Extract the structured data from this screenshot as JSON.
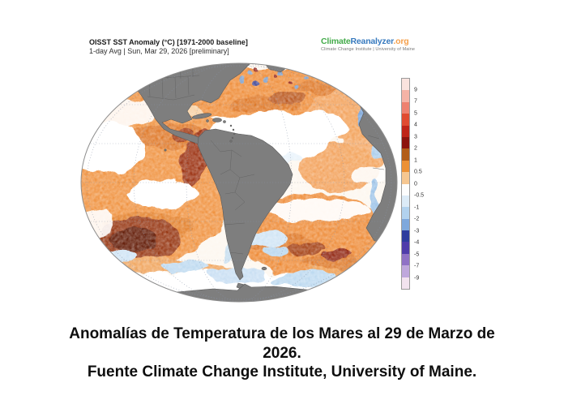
{
  "figure": {
    "title": "OISST SST Anomaly (°C) [1971-2000 baseline]",
    "subtitle": "1-day Avg | Sun, Mar 29, 2026 [preliminary]",
    "logo": {
      "name_part_green": "Climate",
      "name_part_blue": "Reanalyzer",
      "name_part_orange": ".org",
      "tagline": "Climate Change Institute | University of Maine",
      "color_green": "#43ab4a",
      "color_blue": "#3679be",
      "color_orange": "#f6a04b"
    },
    "map": {
      "description": "Orthographic globe of sea-surface temperature anomaly centered on South America and the Atlantic; land gray, ocean mostly warm orange/red anomalies with scattered cool blue patches",
      "land_color": "#7e7e7e",
      "ocean_base_color": "#fdf7ef"
    },
    "colorbar": {
      "unit_labels": [
        "9",
        "7",
        "5",
        "4",
        "3",
        "2",
        "1",
        "0.5",
        "0",
        "-0.5",
        "-1",
        "-2",
        "-3",
        "-4",
        "-5",
        "-7",
        "-9"
      ],
      "segment_colors_top_to_bottom": [
        "#fae3de",
        "#f5b3a6",
        "#ee8170",
        "#e04b31",
        "#bf2418",
        "#8c130d",
        "#b25d18",
        "#ec9136",
        "#f6c791",
        "#fdfdfd",
        "#dcebf7",
        "#b2d2ee",
        "#7ea8dc",
        "#2e3d9e",
        "#4f3daa",
        "#8f72c5",
        "#bfa8dc",
        "#f2e3ef"
      ]
    }
  },
  "caption": {
    "lines": [
      "Anomalías de Temperatura de los Mares al 29 de Marzo de",
      "2026.",
      "Fuente Climate Change Institute, University of Maine."
    ]
  }
}
